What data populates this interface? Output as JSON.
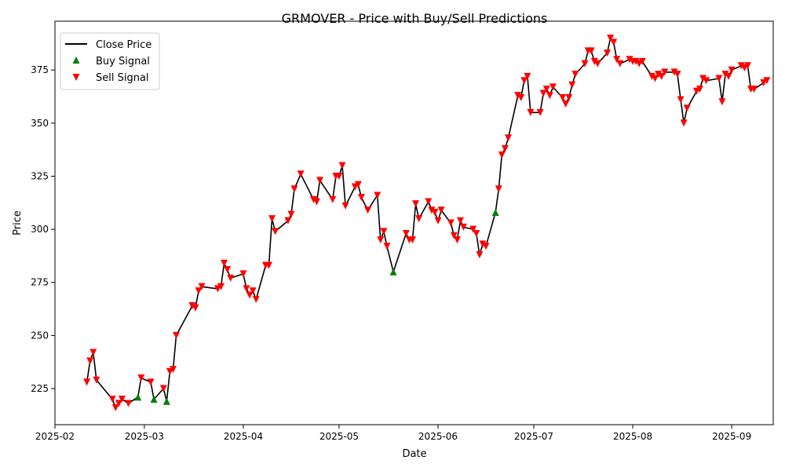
{
  "chart_data": {
    "type": "line",
    "title": "GRMOVER - Price with Buy/Sell Predictions",
    "xlabel": "Date",
    "ylabel": "Price",
    "x_range": [
      "2025-02-01",
      "2025-09-14"
    ],
    "ylim": [
      208,
      398
    ],
    "x_ticks": [
      "2025-02",
      "2025-03",
      "2025-04",
      "2025-05",
      "2025-06",
      "2025-07",
      "2025-08",
      "2025-09"
    ],
    "y_ticks": [
      225,
      250,
      275,
      300,
      325,
      350,
      375
    ],
    "grid": false,
    "legend": {
      "placement": "upper-left",
      "entries": [
        "Close Price",
        "Buy Signal",
        "Sell Signal"
      ]
    },
    "colors": {
      "close": "#000000",
      "buy": "#008000",
      "sell": "#ff0000"
    },
    "series": [
      {
        "name": "Close Price",
        "style": "line",
        "points": [
          [
            "2025-02-11",
            228
          ],
          [
            "2025-02-12",
            238
          ],
          [
            "2025-02-13",
            242
          ],
          [
            "2025-02-14",
            229
          ],
          [
            "2025-02-19",
            220
          ],
          [
            "2025-02-20",
            216
          ],
          [
            "2025-02-21",
            218
          ],
          [
            "2025-02-22",
            220
          ],
          [
            "2025-02-24",
            218
          ],
          [
            "2025-02-27",
            221
          ],
          [
            "2025-02-28",
            230
          ],
          [
            "2025-03-03",
            228
          ],
          [
            "2025-03-04",
            220
          ],
          [
            "2025-03-07",
            225
          ],
          [
            "2025-03-08",
            219
          ],
          [
            "2025-03-09",
            233
          ],
          [
            "2025-03-10",
            234
          ],
          [
            "2025-03-11",
            250
          ],
          [
            "2025-03-16",
            264
          ],
          [
            "2025-03-17",
            263
          ],
          [
            "2025-03-18",
            271
          ],
          [
            "2025-03-19",
            273
          ],
          [
            "2025-03-24",
            272
          ],
          [
            "2025-03-25",
            273
          ],
          [
            "2025-03-26",
            284
          ],
          [
            "2025-03-27",
            281
          ],
          [
            "2025-03-28",
            277
          ],
          [
            "2025-04-01",
            279
          ],
          [
            "2025-04-02",
            272
          ],
          [
            "2025-04-03",
            269
          ],
          [
            "2025-04-04",
            271
          ],
          [
            "2025-04-05",
            267
          ],
          [
            "2025-04-08",
            283
          ],
          [
            "2025-04-09",
            283
          ],
          [
            "2025-04-10",
            305
          ],
          [
            "2025-04-11",
            299
          ],
          [
            "2025-04-15",
            304
          ],
          [
            "2025-04-16",
            307
          ],
          [
            "2025-04-17",
            319
          ],
          [
            "2025-04-19",
            326
          ],
          [
            "2025-04-23",
            314
          ],
          [
            "2025-04-24",
            313
          ],
          [
            "2025-04-25",
            323
          ],
          [
            "2025-04-29",
            314
          ],
          [
            "2025-04-30",
            325
          ],
          [
            "2025-05-01",
            325
          ],
          [
            "2025-05-02",
            330
          ],
          [
            "2025-05-03",
            311
          ],
          [
            "2025-05-06",
            320
          ],
          [
            "2025-05-07",
            321
          ],
          [
            "2025-05-08",
            315
          ],
          [
            "2025-05-10",
            309
          ],
          [
            "2025-05-13",
            316
          ],
          [
            "2025-05-14",
            295
          ],
          [
            "2025-05-15",
            299
          ],
          [
            "2025-05-16",
            292
          ],
          [
            "2025-05-18",
            280
          ],
          [
            "2025-05-22",
            298
          ],
          [
            "2025-05-23",
            295
          ],
          [
            "2025-05-24",
            295
          ],
          [
            "2025-05-25",
            312
          ],
          [
            "2025-05-26",
            305
          ],
          [
            "2025-05-29",
            313
          ],
          [
            "2025-05-30",
            309
          ],
          [
            "2025-05-31",
            308
          ],
          [
            "2025-06-01",
            304
          ],
          [
            "2025-06-02",
            309
          ],
          [
            "2025-06-05",
            303
          ],
          [
            "2025-06-06",
            297
          ],
          [
            "2025-06-07",
            295
          ],
          [
            "2025-06-08",
            304
          ],
          [
            "2025-06-09",
            301
          ],
          [
            "2025-06-12",
            300
          ],
          [
            "2025-06-13",
            298
          ],
          [
            "2025-06-14",
            288
          ],
          [
            "2025-06-15",
            293
          ],
          [
            "2025-06-16",
            292
          ],
          [
            "2025-06-19",
            308
          ],
          [
            "2025-06-20",
            319
          ],
          [
            "2025-06-21",
            335
          ],
          [
            "2025-06-22",
            338
          ],
          [
            "2025-06-23",
            343
          ],
          [
            "2025-06-26",
            363
          ],
          [
            "2025-06-27",
            362
          ],
          [
            "2025-06-28",
            370
          ],
          [
            "2025-06-29",
            372
          ],
          [
            "2025-06-30",
            355
          ],
          [
            "2025-07-03",
            355
          ],
          [
            "2025-07-04",
            364
          ],
          [
            "2025-07-05",
            366
          ],
          [
            "2025-07-06",
            363
          ],
          [
            "2025-07-07",
            367
          ],
          [
            "2025-07-10",
            362
          ],
          [
            "2025-07-11",
            359
          ],
          [
            "2025-07-12",
            362
          ],
          [
            "2025-07-13",
            368
          ],
          [
            "2025-07-14",
            373
          ],
          [
            "2025-07-17",
            378
          ],
          [
            "2025-07-18",
            384
          ],
          [
            "2025-07-19",
            384
          ],
          [
            "2025-07-20",
            379
          ],
          [
            "2025-07-21",
            378
          ],
          [
            "2025-07-24",
            383
          ],
          [
            "2025-07-25",
            390
          ],
          [
            "2025-07-26",
            388
          ],
          [
            "2025-07-27",
            380
          ],
          [
            "2025-07-28",
            378
          ],
          [
            "2025-07-31",
            380
          ],
          [
            "2025-08-01",
            379
          ],
          [
            "2025-08-02",
            379
          ],
          [
            "2025-08-03",
            378
          ],
          [
            "2025-08-04",
            379
          ],
          [
            "2025-08-07",
            372
          ],
          [
            "2025-08-08",
            371
          ],
          [
            "2025-08-09",
            373
          ],
          [
            "2025-08-10",
            372
          ],
          [
            "2025-08-11",
            374
          ],
          [
            "2025-08-14",
            374
          ],
          [
            "2025-08-15",
            373
          ],
          [
            "2025-08-16",
            361
          ],
          [
            "2025-08-17",
            350
          ],
          [
            "2025-08-18",
            357
          ],
          [
            "2025-08-21",
            365
          ],
          [
            "2025-08-22",
            366
          ],
          [
            "2025-08-23",
            371
          ],
          [
            "2025-08-24",
            370
          ],
          [
            "2025-08-28",
            371
          ],
          [
            "2025-08-29",
            360
          ],
          [
            "2025-08-30",
            373
          ],
          [
            "2025-08-31",
            372
          ],
          [
            "2025-09-01",
            375
          ],
          [
            "2025-09-04",
            377
          ],
          [
            "2025-09-05",
            376
          ],
          [
            "2025-09-06",
            377
          ],
          [
            "2025-09-07",
            366
          ],
          [
            "2025-09-08",
            366
          ],
          [
            "2025-09-11",
            369
          ],
          [
            "2025-09-12",
            370
          ]
        ]
      },
      {
        "name": "Buy Signal",
        "style": "marker-up",
        "points": [
          [
            "2025-02-27",
            221
          ],
          [
            "2025-03-04",
            220
          ],
          [
            "2025-03-08",
            219
          ],
          [
            "2025-05-18",
            280
          ],
          [
            "2025-06-19",
            308
          ]
        ]
      },
      {
        "name": "Sell Signal",
        "style": "marker-down",
        "points": [
          [
            "2025-02-11",
            228
          ],
          [
            "2025-02-12",
            238
          ],
          [
            "2025-02-13",
            242
          ],
          [
            "2025-02-14",
            229
          ],
          [
            "2025-02-19",
            220
          ],
          [
            "2025-02-20",
            216
          ],
          [
            "2025-02-21",
            218
          ],
          [
            "2025-02-22",
            220
          ],
          [
            "2025-02-24",
            218
          ],
          [
            "2025-02-28",
            230
          ],
          [
            "2025-03-03",
            228
          ],
          [
            "2025-03-07",
            225
          ],
          [
            "2025-03-09",
            233
          ],
          [
            "2025-03-10",
            234
          ],
          [
            "2025-03-11",
            250
          ],
          [
            "2025-03-16",
            264
          ],
          [
            "2025-03-17",
            263
          ],
          [
            "2025-03-18",
            271
          ],
          [
            "2025-03-19",
            273
          ],
          [
            "2025-03-24",
            272
          ],
          [
            "2025-03-25",
            273
          ],
          [
            "2025-03-26",
            284
          ],
          [
            "2025-03-27",
            281
          ],
          [
            "2025-03-28",
            277
          ],
          [
            "2025-04-01",
            279
          ],
          [
            "2025-04-02",
            272
          ],
          [
            "2025-04-03",
            269
          ],
          [
            "2025-04-04",
            271
          ],
          [
            "2025-04-05",
            267
          ],
          [
            "2025-04-08",
            283
          ],
          [
            "2025-04-09",
            283
          ],
          [
            "2025-04-10",
            305
          ],
          [
            "2025-04-11",
            299
          ],
          [
            "2025-04-15",
            304
          ],
          [
            "2025-04-16",
            307
          ],
          [
            "2025-04-17",
            319
          ],
          [
            "2025-04-19",
            326
          ],
          [
            "2025-04-23",
            314
          ],
          [
            "2025-04-24",
            313
          ],
          [
            "2025-04-25",
            323
          ],
          [
            "2025-04-29",
            314
          ],
          [
            "2025-04-30",
            325
          ],
          [
            "2025-05-01",
            325
          ],
          [
            "2025-05-02",
            330
          ],
          [
            "2025-05-03",
            311
          ],
          [
            "2025-05-06",
            320
          ],
          [
            "2025-05-07",
            321
          ],
          [
            "2025-05-08",
            315
          ],
          [
            "2025-05-10",
            309
          ],
          [
            "2025-05-13",
            316
          ],
          [
            "2025-05-14",
            295
          ],
          [
            "2025-05-15",
            299
          ],
          [
            "2025-05-16",
            292
          ],
          [
            "2025-05-22",
            298
          ],
          [
            "2025-05-23",
            295
          ],
          [
            "2025-05-24",
            295
          ],
          [
            "2025-05-25",
            312
          ],
          [
            "2025-05-26",
            305
          ],
          [
            "2025-05-29",
            313
          ],
          [
            "2025-05-30",
            309
          ],
          [
            "2025-05-31",
            308
          ],
          [
            "2025-06-01",
            304
          ],
          [
            "2025-06-02",
            309
          ],
          [
            "2025-06-05",
            303
          ],
          [
            "2025-06-06",
            297
          ],
          [
            "2025-06-07",
            295
          ],
          [
            "2025-06-08",
            304
          ],
          [
            "2025-06-09",
            301
          ],
          [
            "2025-06-12",
            300
          ],
          [
            "2025-06-13",
            298
          ],
          [
            "2025-06-14",
            288
          ],
          [
            "2025-06-15",
            293
          ],
          [
            "2025-06-16",
            292
          ],
          [
            "2025-06-20",
            319
          ],
          [
            "2025-06-21",
            335
          ],
          [
            "2025-06-22",
            338
          ],
          [
            "2025-06-23",
            343
          ],
          [
            "2025-06-26",
            363
          ],
          [
            "2025-06-27",
            362
          ],
          [
            "2025-06-28",
            370
          ],
          [
            "2025-06-29",
            372
          ],
          [
            "2025-06-30",
            355
          ],
          [
            "2025-07-03",
            355
          ],
          [
            "2025-07-04",
            364
          ],
          [
            "2025-07-05",
            366
          ],
          [
            "2025-07-06",
            363
          ],
          [
            "2025-07-07",
            367
          ],
          [
            "2025-07-10",
            362
          ],
          [
            "2025-07-11",
            359
          ],
          [
            "2025-07-12",
            362
          ],
          [
            "2025-07-13",
            368
          ],
          [
            "2025-07-14",
            373
          ],
          [
            "2025-07-17",
            378
          ],
          [
            "2025-07-18",
            384
          ],
          [
            "2025-07-19",
            384
          ],
          [
            "2025-07-20",
            379
          ],
          [
            "2025-07-21",
            378
          ],
          [
            "2025-07-24",
            383
          ],
          [
            "2025-07-25",
            390
          ],
          [
            "2025-07-26",
            388
          ],
          [
            "2025-07-27",
            380
          ],
          [
            "2025-07-28",
            378
          ],
          [
            "2025-07-31",
            380
          ],
          [
            "2025-08-01",
            379
          ],
          [
            "2025-08-02",
            379
          ],
          [
            "2025-08-03",
            378
          ],
          [
            "2025-08-04",
            379
          ],
          [
            "2025-08-07",
            372
          ],
          [
            "2025-08-08",
            371
          ],
          [
            "2025-08-09",
            373
          ],
          [
            "2025-08-10",
            372
          ],
          [
            "2025-08-11",
            374
          ],
          [
            "2025-08-14",
            374
          ],
          [
            "2025-08-15",
            373
          ],
          [
            "2025-08-16",
            361
          ],
          [
            "2025-08-17",
            350
          ],
          [
            "2025-08-18",
            357
          ],
          [
            "2025-08-21",
            365
          ],
          [
            "2025-08-22",
            366
          ],
          [
            "2025-08-23",
            371
          ],
          [
            "2025-08-24",
            370
          ],
          [
            "2025-08-28",
            371
          ],
          [
            "2025-08-29",
            360
          ],
          [
            "2025-08-30",
            373
          ],
          [
            "2025-08-31",
            372
          ],
          [
            "2025-09-01",
            375
          ],
          [
            "2025-09-04",
            377
          ],
          [
            "2025-09-05",
            376
          ],
          [
            "2025-09-06",
            377
          ],
          [
            "2025-09-07",
            366
          ],
          [
            "2025-09-08",
            366
          ],
          [
            "2025-09-11",
            369
          ],
          [
            "2025-09-12",
            370
          ]
        ]
      }
    ]
  }
}
